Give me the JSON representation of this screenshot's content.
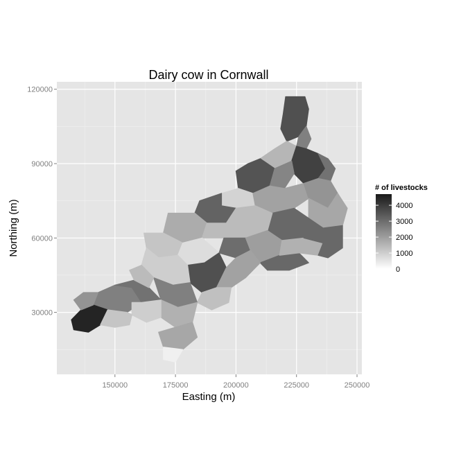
{
  "title": "Dairy cow in Cornwall",
  "x_axis": {
    "label": "Easting (m)",
    "range": [
      126000,
      252000
    ],
    "ticks": [
      {
        "value": 150000,
        "label": "150000"
      },
      {
        "value": 175000,
        "label": "175000"
      },
      {
        "value": 200000,
        "label": "200000"
      },
      {
        "value": 225000,
        "label": "225000"
      },
      {
        "value": 250000,
        "label": "250000"
      }
    ]
  },
  "y_axis": {
    "label": "Northing (m)",
    "range": [
      5000,
      123000
    ],
    "ticks": [
      {
        "value": 30000,
        "label": "30000"
      },
      {
        "value": 60000,
        "label": "60000"
      },
      {
        "value": 90000,
        "label": "90000"
      },
      {
        "value": 120000,
        "label": "120000"
      }
    ]
  },
  "legend": {
    "title": "# of livestocks",
    "min": 0,
    "max": 4700,
    "ticks": [
      {
        "value": 0,
        "label": "0"
      },
      {
        "value": 1000,
        "label": "1000"
      },
      {
        "value": 2000,
        "label": "2000"
      },
      {
        "value": 3000,
        "label": "3000"
      },
      {
        "value": 4000,
        "label": "4000"
      }
    ],
    "low_color": "#ffffff",
    "high_color": "#1a1a1a"
  },
  "colors": {
    "panel_background": "#e5e5e5",
    "grid_major": "#ffffff",
    "grid_minor": "#f2f2f2"
  },
  "chart_data": {
    "type": "choropleth",
    "regions": [
      {
        "id": "north-tip",
        "value": 3600,
        "pts": [
          [
            220500,
            117000
          ],
          [
            228500,
            117000
          ],
          [
            230000,
            112000
          ],
          [
            229000,
            105000
          ],
          [
            226000,
            101000
          ],
          [
            221000,
            99000
          ],
          [
            218500,
            104000
          ],
          [
            219500,
            110000
          ]
        ]
      },
      {
        "id": "north-tip-east",
        "value": 2600,
        "pts": [
          [
            226000,
            101000
          ],
          [
            229000,
            105000
          ],
          [
            231000,
            100000
          ],
          [
            229000,
            96000
          ],
          [
            225000,
            97000
          ]
        ]
      },
      {
        "id": "north-west-1",
        "value": 1500,
        "pts": [
          [
            210000,
            92000
          ],
          [
            216000,
            96000
          ],
          [
            221000,
            99000
          ],
          [
            225000,
            97000
          ],
          [
            223000,
            91000
          ],
          [
            216000,
            88000
          ]
        ]
      },
      {
        "id": "north-east-dark",
        "value": 3900,
        "pts": [
          [
            225000,
            97000
          ],
          [
            229000,
            96000
          ],
          [
            234000,
            94000
          ],
          [
            237000,
            88000
          ],
          [
            234000,
            84000
          ],
          [
            228000,
            82000
          ],
          [
            224000,
            86000
          ],
          [
            223000,
            91000
          ]
        ]
      },
      {
        "id": "north-east-edge",
        "value": 2900,
        "pts": [
          [
            234000,
            94000
          ],
          [
            238000,
            92000
          ],
          [
            241000,
            88000
          ],
          [
            239000,
            83000
          ],
          [
            234000,
            84000
          ],
          [
            237000,
            88000
          ]
        ]
      },
      {
        "id": "north-mid-dark",
        "value": 3500,
        "pts": [
          [
            200000,
            87000
          ],
          [
            205000,
            90000
          ],
          [
            210000,
            92000
          ],
          [
            216000,
            88000
          ],
          [
            214000,
            81000
          ],
          [
            207000,
            78000
          ],
          [
            201000,
            80000
          ]
        ]
      },
      {
        "id": "north-mid-2",
        "value": 2500,
        "pts": [
          [
            214000,
            81000
          ],
          [
            216000,
            88000
          ],
          [
            223000,
            91000
          ],
          [
            224000,
            86000
          ],
          [
            220000,
            80000
          ]
        ]
      },
      {
        "id": "north-coast-left",
        "value": 900,
        "pts": [
          [
            194000,
            78000
          ],
          [
            201000,
            80000
          ],
          [
            207000,
            78000
          ],
          [
            208000,
            73000
          ],
          [
            200000,
            72000
          ],
          [
            194000,
            73000
          ]
        ]
      },
      {
        "id": "north-central-light",
        "value": 1900,
        "pts": [
          [
            208000,
            73000
          ],
          [
            207000,
            78000
          ],
          [
            214000,
            81000
          ],
          [
            220000,
            80000
          ],
          [
            228000,
            82000
          ],
          [
            230000,
            76000
          ],
          [
            224000,
            72000
          ],
          [
            215000,
            70000
          ]
        ]
      },
      {
        "id": "east-upper",
        "value": 2200,
        "pts": [
          [
            228000,
            82000
          ],
          [
            234000,
            84000
          ],
          [
            239000,
            83000
          ],
          [
            242000,
            78000
          ],
          [
            238000,
            72000
          ],
          [
            230000,
            76000
          ]
        ]
      },
      {
        "id": "east-mid",
        "value": 1800,
        "pts": [
          [
            230000,
            76000
          ],
          [
            238000,
            72000
          ],
          [
            242000,
            78000
          ],
          [
            246000,
            72000
          ],
          [
            244000,
            65000
          ],
          [
            236000,
            64000
          ],
          [
            230000,
            68000
          ]
        ]
      },
      {
        "id": "east-mid-dark",
        "value": 3100,
        "pts": [
          [
            215000,
            70000
          ],
          [
            224000,
            72000
          ],
          [
            230000,
            68000
          ],
          [
            228000,
            60000
          ],
          [
            219000,
            59000
          ],
          [
            213000,
            63000
          ]
        ]
      },
      {
        "id": "central-north-dark",
        "value": 3200,
        "pts": [
          [
            185000,
            75000
          ],
          [
            194000,
            78000
          ],
          [
            194000,
            73000
          ],
          [
            200000,
            72000
          ],
          [
            196000,
            66000
          ],
          [
            188000,
            66000
          ],
          [
            183000,
            70000
          ]
        ]
      },
      {
        "id": "central-light-1",
        "value": 1700,
        "pts": [
          [
            172000,
            70000
          ],
          [
            183000,
            70000
          ],
          [
            188000,
            66000
          ],
          [
            186000,
            60000
          ],
          [
            178000,
            58000
          ],
          [
            170000,
            62000
          ]
        ]
      },
      {
        "id": "central-light-2",
        "value": 1400,
        "pts": [
          [
            188000,
            66000
          ],
          [
            196000,
            66000
          ],
          [
            200000,
            72000
          ],
          [
            208000,
            73000
          ],
          [
            215000,
            70000
          ],
          [
            213000,
            63000
          ],
          [
            204000,
            60000
          ],
          [
            195000,
            60000
          ],
          [
            186000,
            60000
          ]
        ]
      },
      {
        "id": "central-dark-mid",
        "value": 3000,
        "pts": [
          [
            195000,
            60000
          ],
          [
            204000,
            60000
          ],
          [
            206000,
            55000
          ],
          [
            200000,
            52000
          ],
          [
            193000,
            54000
          ]
        ]
      },
      {
        "id": "south-east-1",
        "value": 2000,
        "pts": [
          [
            204000,
            60000
          ],
          [
            213000,
            63000
          ],
          [
            219000,
            59000
          ],
          [
            218000,
            53000
          ],
          [
            210000,
            50000
          ],
          [
            206000,
            55000
          ]
        ]
      },
      {
        "id": "south-east-dark",
        "value": 3100,
        "pts": [
          [
            210000,
            50000
          ],
          [
            218000,
            53000
          ],
          [
            226000,
            54000
          ],
          [
            230000,
            50000
          ],
          [
            222000,
            47000
          ],
          [
            213000,
            47000
          ]
        ]
      },
      {
        "id": "south-east-2",
        "value": 1600,
        "pts": [
          [
            219000,
            59000
          ],
          [
            228000,
            60000
          ],
          [
            236000,
            58000
          ],
          [
            234000,
            53000
          ],
          [
            226000,
            54000
          ],
          [
            218000,
            53000
          ]
        ]
      },
      {
        "id": "east-coast-dark",
        "value": 3100,
        "pts": [
          [
            228000,
            60000
          ],
          [
            230000,
            68000
          ],
          [
            236000,
            64000
          ],
          [
            244000,
            65000
          ],
          [
            244000,
            56000
          ],
          [
            238000,
            52000
          ],
          [
            234000,
            53000
          ],
          [
            236000,
            58000
          ]
        ]
      },
      {
        "id": "mid-left-light",
        "value": 1200,
        "pts": [
          [
            162000,
            62000
          ],
          [
            170000,
            62000
          ],
          [
            178000,
            58000
          ],
          [
            176000,
            53000
          ],
          [
            168000,
            52000
          ],
          [
            163000,
            56000
          ]
        ]
      },
      {
        "id": "mid-light-2",
        "value": 700,
        "pts": [
          [
            176000,
            53000
          ],
          [
            178000,
            58000
          ],
          [
            186000,
            60000
          ],
          [
            193000,
            54000
          ],
          [
            187000,
            50000
          ],
          [
            180000,
            49000
          ]
        ]
      },
      {
        "id": "mid-dark-main",
        "value": 3600,
        "pts": [
          [
            180000,
            49000
          ],
          [
            187000,
            50000
          ],
          [
            193000,
            54000
          ],
          [
            196000,
            48000
          ],
          [
            192000,
            40000
          ],
          [
            186000,
            38000
          ],
          [
            181000,
            42000
          ]
        ]
      },
      {
        "id": "mid-south-1",
        "value": 1900,
        "pts": [
          [
            192000,
            40000
          ],
          [
            196000,
            48000
          ],
          [
            200000,
            52000
          ],
          [
            206000,
            55000
          ],
          [
            210000,
            50000
          ],
          [
            204000,
            44000
          ],
          [
            198000,
            40000
          ]
        ]
      },
      {
        "id": "mid-south-2",
        "value": 1300,
        "pts": [
          [
            186000,
            38000
          ],
          [
            192000,
            40000
          ],
          [
            198000,
            40000
          ],
          [
            197000,
            34000
          ],
          [
            190000,
            31000
          ],
          [
            184000,
            34000
          ]
        ]
      },
      {
        "id": "west-mid-1",
        "value": 1000,
        "pts": [
          [
            163000,
            56000
          ],
          [
            168000,
            52000
          ],
          [
            176000,
            53000
          ],
          [
            180000,
            49000
          ],
          [
            181000,
            42000
          ],
          [
            174000,
            41000
          ],
          [
            166000,
            44000
          ],
          [
            161000,
            49000
          ]
        ]
      },
      {
        "id": "west-mid-dark",
        "value": 2600,
        "pts": [
          [
            166000,
            44000
          ],
          [
            174000,
            41000
          ],
          [
            181000,
            42000
          ],
          [
            184000,
            34000
          ],
          [
            176000,
            32000
          ],
          [
            169000,
            35000
          ]
        ]
      },
      {
        "id": "south-mid-1",
        "value": 1600,
        "pts": [
          [
            169000,
            35000
          ],
          [
            176000,
            32000
          ],
          [
            184000,
            34000
          ],
          [
            182000,
            26000
          ],
          [
            175000,
            24000
          ],
          [
            169000,
            28000
          ]
        ]
      },
      {
        "id": "south-mid-2",
        "value": 1800,
        "pts": [
          [
            175000,
            24000
          ],
          [
            182000,
            26000
          ],
          [
            184000,
            20000
          ],
          [
            178000,
            15000
          ],
          [
            170000,
            16000
          ],
          [
            168000,
            22000
          ]
        ]
      },
      {
        "id": "south-tip-light",
        "value": 300,
        "pts": [
          [
            170000,
            16000
          ],
          [
            178000,
            15000
          ],
          [
            175000,
            10000
          ],
          [
            170000,
            11000
          ]
        ]
      },
      {
        "id": "west-dark-1",
        "value": 2600,
        "pts": [
          [
            143000,
            38000
          ],
          [
            150000,
            41000
          ],
          [
            157000,
            40000
          ],
          [
            161000,
            34000
          ],
          [
            155000,
            30000
          ],
          [
            147000,
            31000
          ],
          [
            141000,
            33000
          ]
        ]
      },
      {
        "id": "west-dark-2",
        "value": 2900,
        "pts": [
          [
            150000,
            41000
          ],
          [
            158000,
            43000
          ],
          [
            164000,
            40000
          ],
          [
            169000,
            35000
          ],
          [
            161000,
            34000
          ],
          [
            157000,
            40000
          ]
        ]
      },
      {
        "id": "west-light-1",
        "value": 1000,
        "pts": [
          [
            157000,
            34000
          ],
          [
            161000,
            34000
          ],
          [
            169000,
            35000
          ],
          [
            169000,
            28000
          ],
          [
            163000,
            26000
          ],
          [
            157000,
            29000
          ]
        ]
      },
      {
        "id": "west-light-2",
        "value": 1400,
        "pts": [
          [
            161000,
            49000
          ],
          [
            166000,
            44000
          ],
          [
            164000,
            40000
          ],
          [
            158000,
            43000
          ],
          [
            156000,
            47000
          ]
        ]
      },
      {
        "id": "far-west-dark",
        "value": 4500,
        "pts": [
          [
            132000,
            27000
          ],
          [
            136000,
            31000
          ],
          [
            141000,
            33000
          ],
          [
            147000,
            31000
          ],
          [
            144000,
            25000
          ],
          [
            139000,
            22000
          ],
          [
            133000,
            23000
          ]
        ]
      },
      {
        "id": "far-west-mid",
        "value": 2200,
        "pts": [
          [
            136000,
            31000
          ],
          [
            133000,
            35000
          ],
          [
            137000,
            38000
          ],
          [
            143000,
            38000
          ],
          [
            141000,
            33000
          ]
        ]
      },
      {
        "id": "south-west-light",
        "value": 1200,
        "pts": [
          [
            147000,
            31000
          ],
          [
            155000,
            30000
          ],
          [
            157000,
            29000
          ],
          [
            156000,
            25000
          ],
          [
            150000,
            24000
          ],
          [
            144000,
            25000
          ]
        ]
      }
    ]
  }
}
